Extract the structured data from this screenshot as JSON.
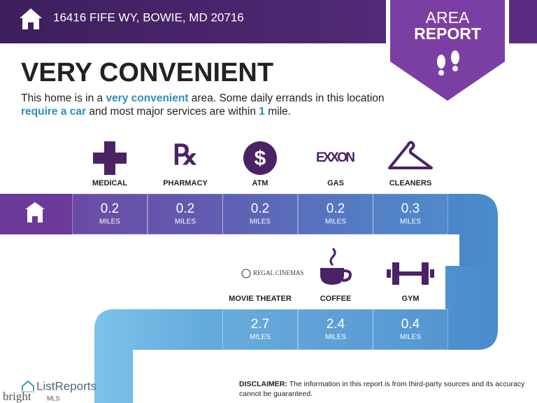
{
  "header": {
    "address": "16416 FIFE WY, BOWIE, MD 20716"
  },
  "badge": {
    "line1": "AREA",
    "line2": "REPORT"
  },
  "headline": "VERY CONVENIENT",
  "description": [
    {
      "text": "This home is in a ",
      "em": false
    },
    {
      "text": "very convenient",
      "em": true
    },
    {
      "text": " area. Some daily errands in this location ",
      "em": false
    },
    {
      "text": "require a car",
      "em": true
    },
    {
      "text": " and most major services are within ",
      "em": false
    },
    {
      "text": "1",
      "em": true
    },
    {
      "text": " mile.",
      "em": false
    }
  ],
  "distance_unit": "MILES",
  "row1": [
    {
      "name": "MEDICAL",
      "icon": "cross",
      "distance": 0.2
    },
    {
      "name": "PHARMACY",
      "icon": "rx",
      "distance": 0.2
    },
    {
      "name": "ATM",
      "icon": "dollar",
      "distance": 0.2
    },
    {
      "name": "GAS",
      "icon": "exxon",
      "logo": "EXXON",
      "distance": 0.2
    },
    {
      "name": "CLEANERS",
      "icon": "hanger",
      "distance": 0.3
    }
  ],
  "row2": [
    {
      "name": "MOVIE THEATER",
      "icon": "regal",
      "logo": "REGAL CINEMAS",
      "distance": 2.7
    },
    {
      "name": "COFFEE",
      "icon": "cup",
      "distance": 2.4
    },
    {
      "name": "GYM",
      "icon": "dumbbell",
      "distance": 0.4
    }
  ],
  "disclaimer": {
    "label": "DISCLAIMER:",
    "text": " The information in this report is from third-party sources and its accuracy cannot be guaranteed."
  },
  "footer": {
    "brand": "ListReports",
    "mls": "bright",
    "mls_suffix": "MLS"
  }
}
